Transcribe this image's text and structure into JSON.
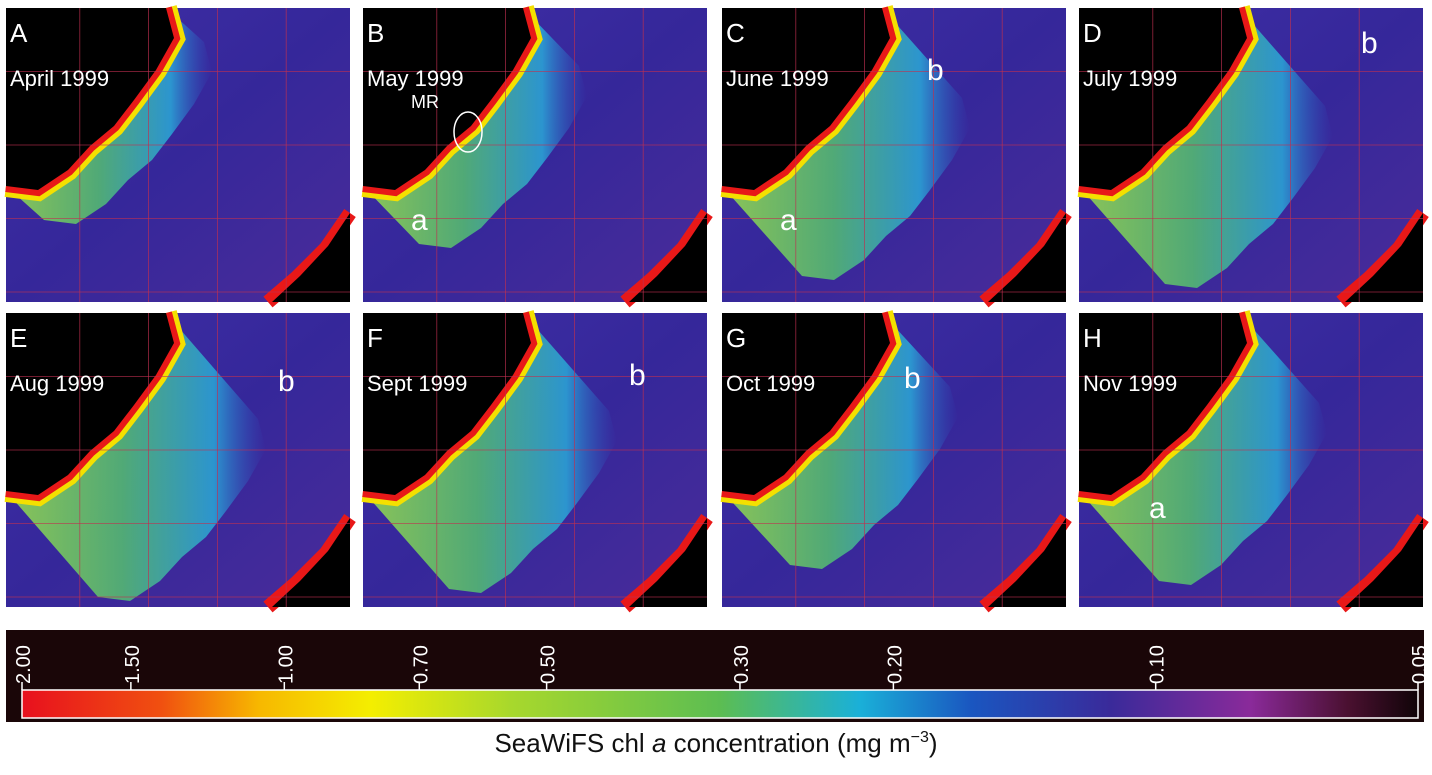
{
  "panels": [
    {
      "letter": "A",
      "month": "April 1999",
      "annotations": []
    },
    {
      "letter": "B",
      "month": "May 1999",
      "annotations": [
        "MR",
        "a"
      ]
    },
    {
      "letter": "C",
      "month": "June 1999",
      "annotations": [
        "b",
        "a"
      ]
    },
    {
      "letter": "D",
      "month": "July 1999",
      "annotations": [
        "b"
      ]
    },
    {
      "letter": "E",
      "month": "Aug 1999",
      "annotations": [
        "b"
      ]
    },
    {
      "letter": "F",
      "month": "Sept 1999",
      "annotations": [
        "b"
      ]
    },
    {
      "letter": "G",
      "month": "Oct 1999",
      "annotations": [
        "b"
      ]
    },
    {
      "letter": "H",
      "month": "Nov 1999",
      "annotations": [
        "a"
      ]
    }
  ],
  "colorbar": {
    "log": true,
    "clim": [
      2,
      0.05
    ],
    "ticks": [
      {
        "value": 2,
        "label": "2.00"
      },
      {
        "value": 1.5,
        "label": "1.50"
      },
      {
        "value": 1,
        "label": "1.00"
      },
      {
        "value": 0.7,
        "label": "0.70"
      },
      {
        "value": 0.5,
        "label": "0.50"
      },
      {
        "value": 0.3,
        "label": "0.30"
      },
      {
        "value": 0.2,
        "label": "0.20"
      },
      {
        "value": 0.1,
        "label": "0.10"
      },
      {
        "value": 0.05,
        "label": "0.05"
      }
    ],
    "label": {
      "pre": "SeaWiFS chl ",
      "italic": "a",
      "mid": " concentration (mg m",
      "sup": "−3",
      "post": ")"
    }
  }
}
